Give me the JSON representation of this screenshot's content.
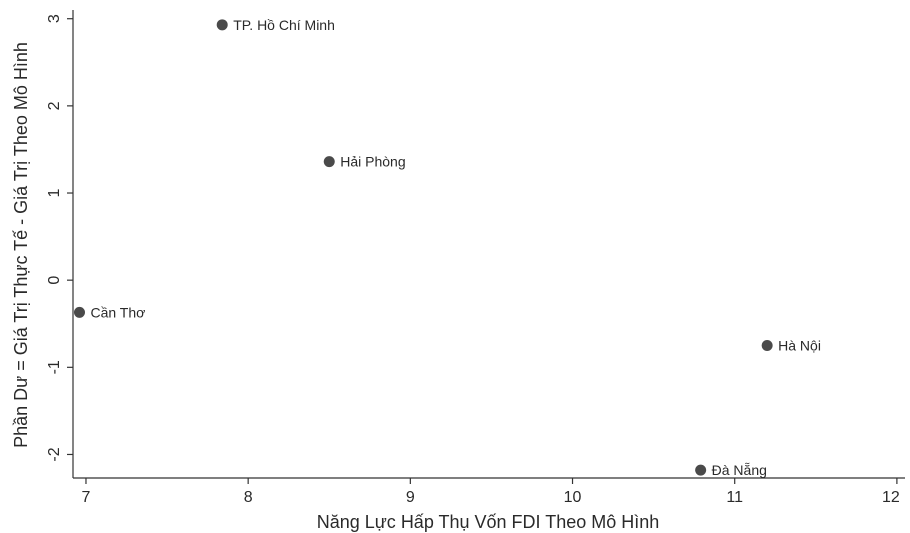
{
  "chart_data": {
    "type": "scatter",
    "xlabel": "Năng Lực Hấp Thụ Vốn FDI Theo Mô Hình",
    "ylabel": "Phần Dư = Giá Trị Thực Tế - Giá Trị Theo Mô Hình",
    "xlim": [
      6.92,
      12.05
    ],
    "ylim": [
      -2.27,
      3.1
    ],
    "xticks": [
      7,
      8,
      9,
      10,
      11,
      12
    ],
    "yticks": [
      -2,
      -1,
      0,
      1,
      2,
      3
    ],
    "grid": false,
    "legend": "none",
    "point_color": "#4a4a4a",
    "points": [
      {
        "label": "TP. Hồ Chí Minh",
        "x": 7.84,
        "y": 2.93
      },
      {
        "label": "Hải Phòng",
        "x": 8.5,
        "y": 1.36
      },
      {
        "label": "Cần Thơ",
        "x": 6.96,
        "y": -0.37
      },
      {
        "label": "Hà Nội",
        "x": 11.2,
        "y": -0.75
      },
      {
        "label": "Đà Nẵng",
        "x": 10.79,
        "y": -2.18
      }
    ]
  }
}
